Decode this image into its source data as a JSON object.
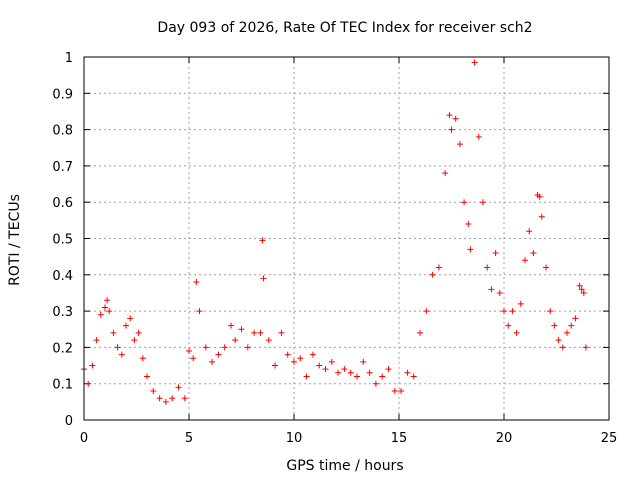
{
  "chart_data": {
    "type": "scatter",
    "title": "Day 093 of 2026, Rate Of TEC Index for receiver sch2",
    "xlabel": "GPS time / hours",
    "ylabel": "ROTI / TECUs",
    "xlim": [
      0,
      25
    ],
    "ylim": [
      0,
      1
    ],
    "x_ticks": [
      "0",
      "5",
      "10",
      "15",
      "20",
      "25"
    ],
    "y_ticks": [
      "0",
      "0.1",
      "0.2",
      "0.3",
      "0.4",
      "0.5",
      "0.6",
      "0.7",
      "0.8",
      "0.9",
      "1"
    ],
    "grid": true,
    "marker": "+",
    "color": "#ff0000",
    "series": [
      {
        "x": [
          0.0,
          0.2,
          0.4,
          0.6,
          0.8,
          1.0,
          1.1,
          1.2,
          1.4,
          1.6,
          1.8,
          2.0,
          2.2,
          2.4,
          2.6,
          2.8,
          3.0,
          3.3,
          3.6,
          3.9,
          4.2,
          4.5,
          4.8,
          5.0,
          5.2,
          5.35,
          5.5,
          5.8,
          6.1,
          6.4,
          6.7,
          7.0,
          7.2,
          7.5,
          7.8,
          8.1,
          8.4,
          8.5,
          8.55,
          8.8,
          9.1,
          9.4,
          9.7,
          10.0,
          10.3,
          10.6,
          10.9,
          11.2,
          11.5,
          11.8,
          12.1,
          12.4,
          12.7,
          13.0,
          13.3,
          13.6,
          13.9,
          14.2,
          14.5,
          14.8,
          15.1,
          15.4,
          15.7,
          16.0,
          16.3,
          16.6,
          16.9,
          17.2,
          17.4,
          17.5,
          17.7,
          17.9,
          18.1,
          18.3,
          18.4,
          18.6,
          18.8,
          19.0,
          19.2,
          19.4,
          19.6,
          19.8,
          20.0,
          20.2,
          20.4,
          20.6,
          20.8,
          21.0,
          21.2,
          21.4,
          21.6,
          21.7,
          21.8,
          22.0,
          22.2,
          22.4,
          22.6,
          22.8,
          23.0,
          23.2,
          23.4,
          23.6,
          23.7,
          23.8,
          23.9
        ],
        "y": [
          0.14,
          0.1,
          0.15,
          0.22,
          0.29,
          0.31,
          0.33,
          0.3,
          0.24,
          0.2,
          0.18,
          0.26,
          0.28,
          0.22,
          0.24,
          0.17,
          0.12,
          0.08,
          0.06,
          0.05,
          0.06,
          0.09,
          0.06,
          0.19,
          0.17,
          0.38,
          0.3,
          0.2,
          0.16,
          0.18,
          0.2,
          0.26,
          0.22,
          0.25,
          0.2,
          0.24,
          0.24,
          0.495,
          0.39,
          0.22,
          0.15,
          0.24,
          0.18,
          0.16,
          0.17,
          0.12,
          0.18,
          0.15,
          0.14,
          0.16,
          0.13,
          0.14,
          0.13,
          0.12,
          0.16,
          0.13,
          0.1,
          0.12,
          0.14,
          0.08,
          0.08,
          0.13,
          0.12,
          0.24,
          0.3,
          0.4,
          0.42,
          0.68,
          0.84,
          0.8,
          0.83,
          0.76,
          0.6,
          0.54,
          0.47,
          0.985,
          0.78,
          0.6,
          0.42,
          0.36,
          0.46,
          0.35,
          0.3,
          0.26,
          0.3,
          0.24,
          0.32,
          0.44,
          0.52,
          0.46,
          0.62,
          0.615,
          0.56,
          0.42,
          0.3,
          0.26,
          0.22,
          0.2,
          0.24,
          0.26,
          0.28,
          0.37,
          0.36,
          0.35,
          0.2
        ]
      }
    ]
  }
}
